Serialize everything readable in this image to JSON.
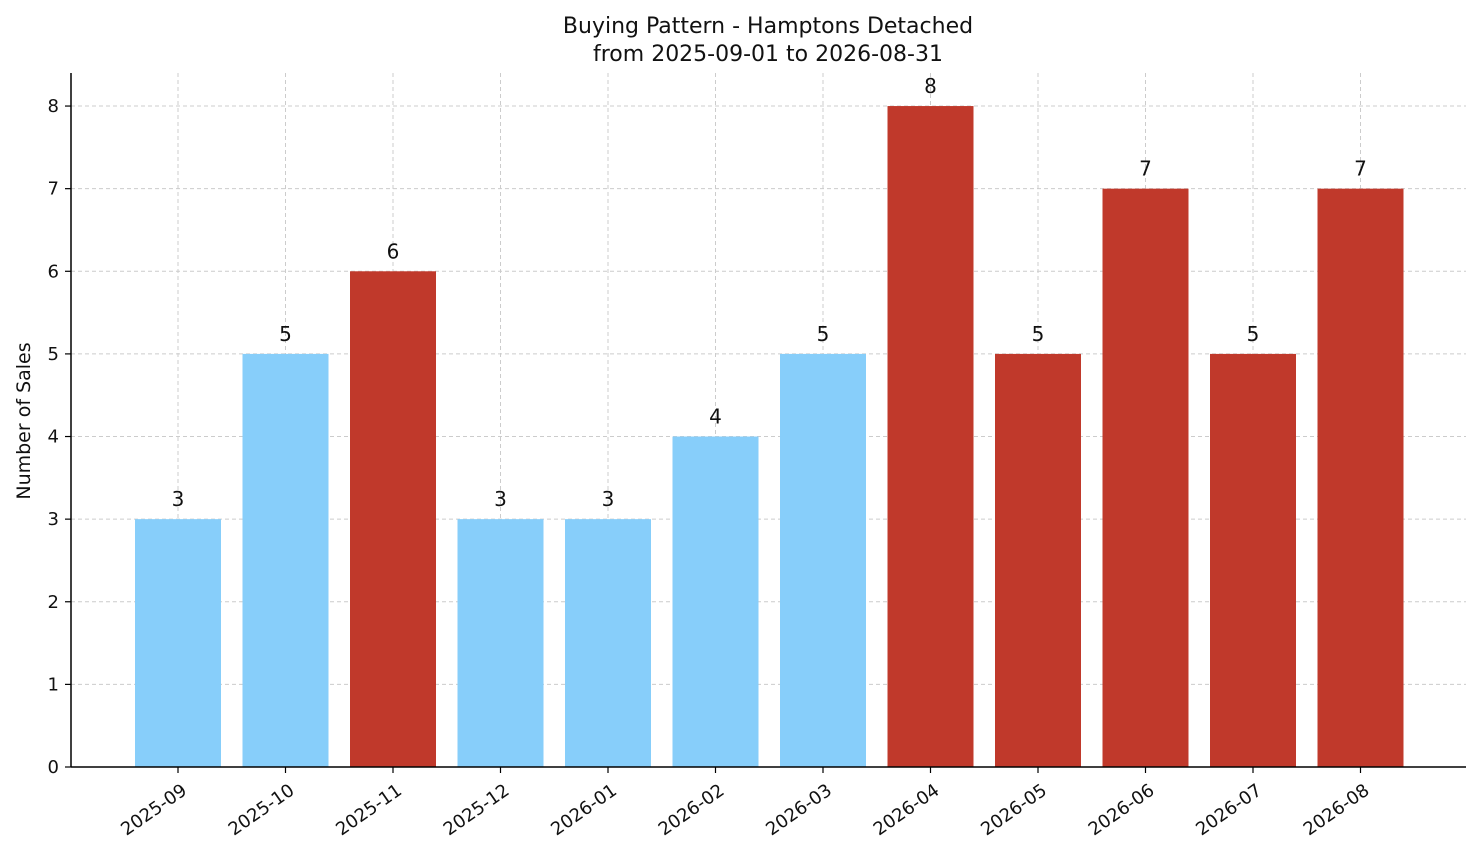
{
  "title_line1": "Buying Pattern - Hamptons Detached",
  "title_line2": "from 2025-09-01 to 2026-08-31",
  "ylabel": "Number of Sales",
  "colors": {
    "low": "#87CEFA",
    "high": "#C0392B",
    "grid": "#cccccc"
  },
  "chart_data": {
    "type": "bar",
    "title": "Buying Pattern - Hamptons Detached\nfrom 2025-09-01 to 2026-08-31",
    "xlabel": "",
    "ylabel": "Number of Sales",
    "categories": [
      "2025-09",
      "2025-10",
      "2025-11",
      "2025-12",
      "2026-01",
      "2026-02",
      "2026-03",
      "2026-04",
      "2026-05",
      "2026-06",
      "2026-07",
      "2026-08"
    ],
    "values": [
      3,
      5,
      6,
      3,
      3,
      4,
      5,
      8,
      5,
      7,
      5,
      7
    ],
    "bar_colors": [
      "#87CEFA",
      "#87CEFA",
      "#C0392B",
      "#87CEFA",
      "#87CEFA",
      "#87CEFA",
      "#87CEFA",
      "#C0392B",
      "#C0392B",
      "#C0392B",
      "#C0392B",
      "#C0392B"
    ],
    "ylim": [
      0,
      8.4
    ],
    "yticks": [
      0,
      1,
      2,
      3,
      4,
      5,
      6,
      7,
      8
    ],
    "grid": true
  }
}
